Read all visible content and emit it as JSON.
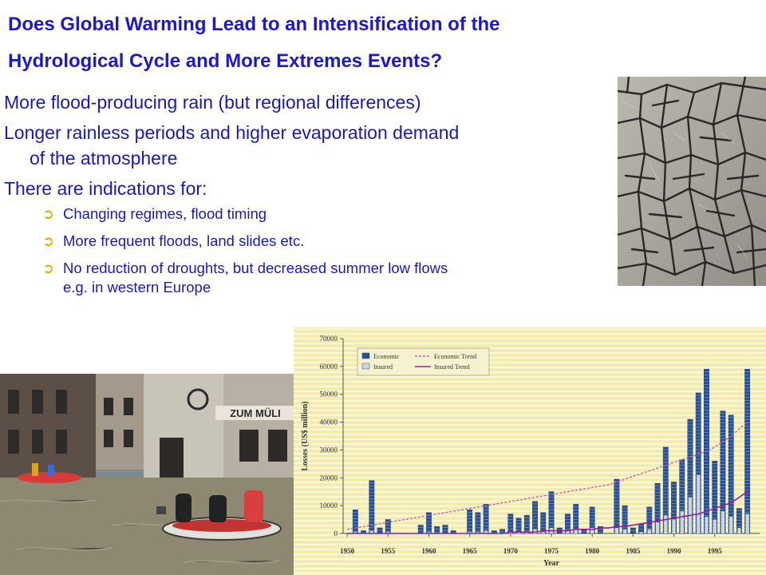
{
  "title": {
    "line1": "Does Global Warming Lead to an Intensification of the",
    "line2": "Hydrological Cycle and More Extremes Events?"
  },
  "bullets": {
    "items": [
      {
        "text": "More flood-producing rain (but regional differences)"
      },
      {
        "text": "Longer rainless periods and higher evaporation demand",
        "cont": "of the atmosphere"
      },
      {
        "text": "There are indications for:"
      }
    ],
    "subitems": [
      {
        "text": "Changing regimes, flood timing"
      },
      {
        "text": "More frequent floods, land slides etc."
      },
      {
        "text": "No reduction of droughts, but decreased summer low flows",
        "cont": "e.g. in western Europe"
      }
    ],
    "arrow_glyph": "➲"
  },
  "photos": {
    "cracked_earth": "cracked-earth-photo",
    "flood_street": "flooded-street-photo",
    "flood_sign": "ZUM MÜLI"
  },
  "chart_data": {
    "type": "bar",
    "ylabel": "Losses (US$ million)",
    "xlabel": "Year",
    "ylim": [
      0,
      70000
    ],
    "yticks": [
      0,
      10000,
      20000,
      30000,
      40000,
      50000,
      60000,
      70000
    ],
    "xticks": [
      1950,
      1955,
      1960,
      1965,
      1970,
      1975,
      1980,
      1985,
      1990,
      1995
    ],
    "legend": {
      "economic": "Economic",
      "insured": "Insured",
      "economic_trend": "Economic Trend",
      "insured_trend": "Insured Trend"
    },
    "colors": {
      "background": "#f3ecad",
      "grid": "#ffffff",
      "economic": "#27509a",
      "insured": "#c8d6e8",
      "economic_trend": "#c060b0",
      "insured_trend": "#9b1fa8"
    },
    "years": [
      1950,
      1951,
      1952,
      1953,
      1954,
      1955,
      1956,
      1957,
      1958,
      1959,
      1960,
      1961,
      1962,
      1963,
      1964,
      1965,
      1966,
      1967,
      1968,
      1969,
      1970,
      1971,
      1972,
      1973,
      1974,
      1975,
      1976,
      1977,
      1978,
      1979,
      1980,
      1981,
      1982,
      1983,
      1984,
      1985,
      1986,
      1987,
      1988,
      1989,
      1990,
      1991,
      1992,
      1993,
      1994,
      1995,
      1996,
      1997,
      1998,
      1999
    ],
    "economic": [
      0,
      8500,
      1000,
      19000,
      2000,
      5000,
      0,
      0,
      0,
      3000,
      7500,
      2500,
      3000,
      1000,
      0,
      8500,
      7500,
      10500,
      1000,
      1500,
      7000,
      5500,
      6500,
      11500,
      7500,
      15000,
      2000,
      7000,
      10500,
      1500,
      9500,
      2500,
      0,
      19500,
      10000,
      2000,
      3500,
      9500,
      18000,
      31000,
      18500,
      26500,
      41000,
      50500,
      59000,
      26000,
      44000,
      42500,
      9000,
      59000
    ],
    "insured": [
      0,
      500,
      0,
      1000,
      0,
      500,
      0,
      0,
      0,
      0,
      500,
      0,
      0,
      0,
      0,
      500,
      500,
      1000,
      0,
      0,
      500,
      500,
      500,
      1500,
      500,
      2000,
      0,
      1000,
      1500,
      0,
      2000,
      0,
      0,
      2000,
      1500,
      0,
      500,
      1500,
      4000,
      6500,
      5000,
      8000,
      13000,
      21000,
      6000,
      5000,
      8000,
      6000,
      2000,
      7000
    ],
    "economic_trend": [
      1500,
      2000,
      2500,
      3000,
      3500,
      4000,
      4500,
      5000,
      5500,
      6000,
      6500,
      7000,
      7500,
      8000,
      8500,
      9000,
      9500,
      10000,
      10500,
      11000,
      11500,
      12000,
      12500,
      13000,
      13500,
      14000,
      14500,
      15000,
      15500,
      16000,
      16500,
      17000,
      17500,
      18500,
      19500,
      20500,
      21500,
      22500,
      23500,
      24500,
      25500,
      26500,
      27500,
      28500,
      29500,
      31000,
      33000,
      35000,
      37500,
      40000
    ],
    "insured_trend": [
      0,
      0,
      0,
      0,
      0,
      0,
      0,
      0,
      0,
      0,
      0,
      0,
      0,
      0,
      0,
      0,
      0,
      0,
      0,
      0,
      500,
      500,
      500,
      500,
      1000,
      1000,
      1000,
      1000,
      1500,
      1500,
      1500,
      2000,
      2000,
      2500,
      2500,
      3000,
      3500,
      4000,
      4500,
      5000,
      5500,
      6000,
      6500,
      7000,
      8000,
      9000,
      10000,
      11000,
      13000,
      15000
    ]
  }
}
